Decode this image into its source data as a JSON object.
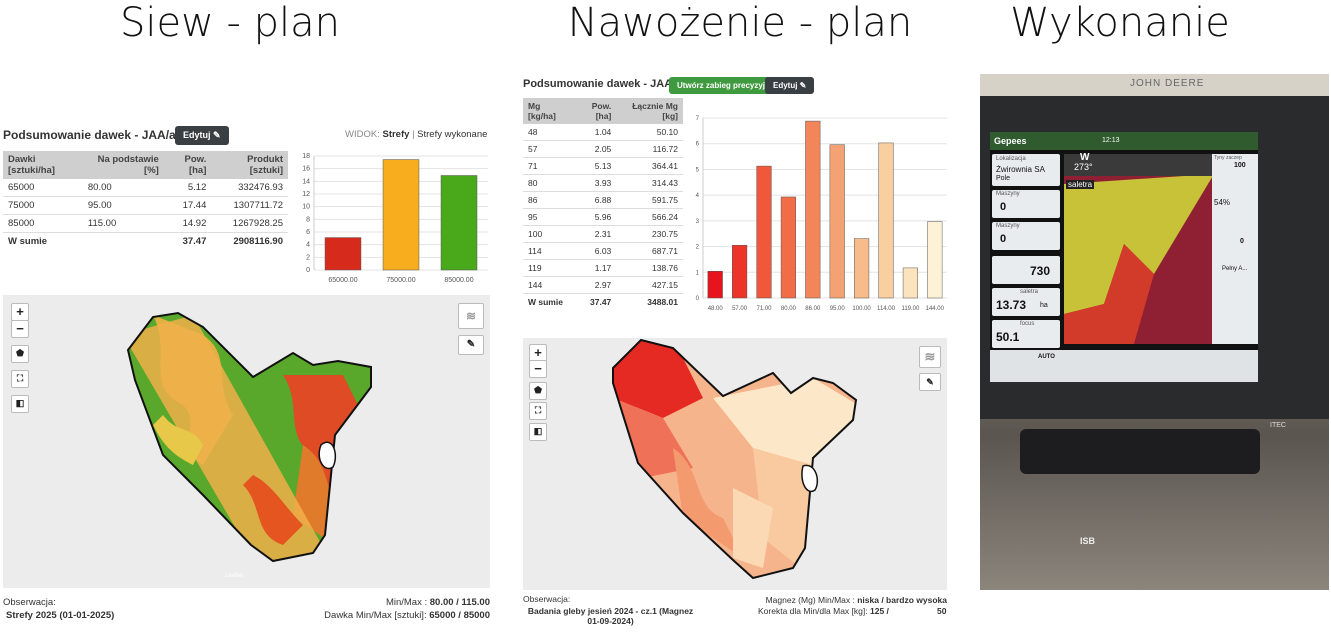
{
  "headings": [
    "Siew - plan",
    "Nawożenie - plan",
    "Wykonanie"
  ],
  "seeding": {
    "title": "Podsumowanie dawek - JAA/al",
    "edit_button": "Edytuj",
    "view_label": "WIDOK:",
    "view_options": [
      "Strefy",
      "Strefy wykonane"
    ],
    "separator": "|",
    "table": {
      "headers": [
        "Dawki [sztuki/ha]",
        "Na podstawie [%]",
        "Pow. [ha]",
        "Produkt [sztuki]"
      ],
      "rows": [
        [
          "65000",
          "80.00",
          "5.12",
          "332476.93"
        ],
        [
          "75000",
          "95.00",
          "17.44",
          "1307711.72"
        ],
        [
          "85000",
          "115.00",
          "14.92",
          "1267928.25"
        ]
      ],
      "total": [
        "W sumie",
        null,
        "37.47",
        "2908116.90"
      ]
    },
    "map": {
      "zoom_in": "+",
      "zoom_out": "−",
      "attribution": "Leaflet"
    },
    "footer": {
      "observation_label": "Obserwacja:",
      "observation": "Strefy 2025 (01-01-2025)",
      "minmax_label": "Min/Max :",
      "minmax": "80.00 / 115.00",
      "dose_label": "Dawka Min/Max [sztuki]:",
      "dose": "65000 / 85000"
    }
  },
  "fertilizing": {
    "title": "Podsumowanie dawek - JAA/al",
    "precision_button": "Utwórz zabieg precyzyjny",
    "edit_button": "Edytuj",
    "table": {
      "headers": [
        "Mg [kg/ha]",
        "Pow. [ha]",
        "Łącznie Mg [kg]"
      ],
      "rows": [
        [
          "48",
          "1.04",
          "50.10"
        ],
        [
          "57",
          "2.05",
          "116.72"
        ],
        [
          "71",
          "5.13",
          "364.41"
        ],
        [
          "80",
          "3.93",
          "314.43"
        ],
        [
          "86",
          "6.88",
          "591.75"
        ],
        [
          "95",
          "5.96",
          "566.24"
        ],
        [
          "100",
          "2.31",
          "230.75"
        ],
        [
          "114",
          "6.03",
          "687.71"
        ],
        [
          "119",
          "1.17",
          "138.76"
        ],
        [
          "144",
          "2.97",
          "427.15"
        ]
      ],
      "total": [
        "W sumie",
        "37.47",
        "3488.01"
      ]
    },
    "map": {
      "zoom_in": "+",
      "zoom_out": "−"
    },
    "footer": {
      "observation_label": "Obserwacja:",
      "observation": "Badania gleby jesień 2024 - cz.1 (Magnez 01-09-2024)",
      "minmax_label": "Magnez (Mg) Min/Max :",
      "minmax": "niska / bardzo wysoka",
      "correction_label": "Korekta  dla Min/dla Max [kg]:",
      "correction_min": "125 /",
      "correction_max": "50"
    }
  },
  "execution": {
    "brand": "JOHN DEERE",
    "app": "Gepees",
    "time": "12:13",
    "location_label": "Lokalizacja",
    "location": "Żwirownia SA",
    "field": "Pole",
    "machine_label": "Maszyny",
    "machine_value": "0",
    "machine2_label": "Maszyny",
    "machine2_value": "0",
    "direction": "W",
    "heading": "273°",
    "product": "saletra",
    "rate": "730",
    "area_label": "saletra",
    "area": "13.73",
    "area_unit": "ha",
    "speed_label": "focus",
    "speed": "50.1",
    "tank_label": "Tyny zaczep",
    "tank_top": "100",
    "tank_pct": "54%",
    "tank_bottom": "0",
    "mode": "Pełny A...",
    "auto": "AUTO",
    "isb": "ISB",
    "itec": "ITEC"
  },
  "chart_data": [
    {
      "type": "bar",
      "categories": [
        "65000.00",
        "75000.00",
        "85000.00"
      ],
      "values": [
        5.12,
        17.44,
        14.92
      ],
      "colors": [
        "#d62a1d",
        "#f7ad1e",
        "#4aa81b"
      ],
      "ylim": [
        0,
        18
      ],
      "yticks": [
        0,
        2,
        4,
        6,
        8,
        10,
        12,
        14,
        16,
        18
      ],
      "grid": true
    },
    {
      "type": "bar",
      "categories": [
        "48.00",
        "57.00",
        "71.00",
        "80.00",
        "86.00",
        "95.00",
        "100.00",
        "114.00",
        "119.00",
        "144.00"
      ],
      "values": [
        1.04,
        2.05,
        5.13,
        3.93,
        6.88,
        5.96,
        2.31,
        6.03,
        1.17,
        2.97
      ],
      "colors": [
        "#e8141c",
        "#ec3528",
        "#f0583a",
        "#f06d47",
        "#f2865a",
        "#f4a273",
        "#f8bb8b",
        "#f9cf9f",
        "#fbe3bd",
        "#fdf2d5"
      ],
      "ylim": [
        0,
        7
      ],
      "yticks": [
        0,
        1,
        2,
        3,
        4,
        5,
        6,
        7
      ],
      "grid": true
    }
  ]
}
